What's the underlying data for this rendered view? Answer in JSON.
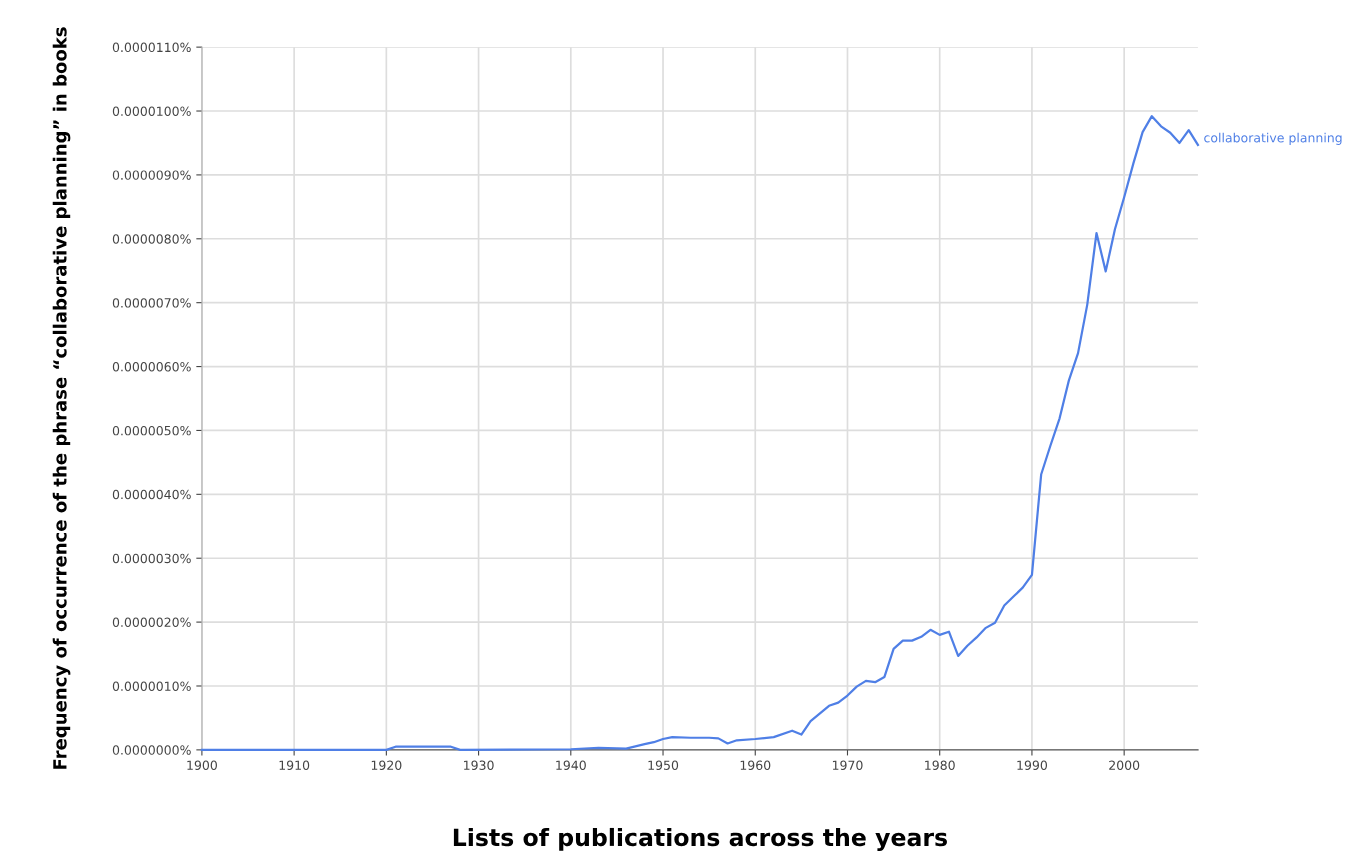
{
  "chart_data": {
    "type": "line",
    "xlabel": "Lists of publications across the years",
    "ylabel": "Frequency of occurrence of the phrase “collaborative planning” in books",
    "x": [
      1900,
      1920,
      1921,
      1927,
      1928,
      1940,
      1943,
      1946,
      1948,
      1949,
      1950,
      1951,
      1953,
      1955,
      1956,
      1957,
      1958,
      1960,
      1962,
      1964,
      1965,
      1966,
      1968,
      1969,
      1970,
      1971,
      1972,
      1973,
      1974,
      1975,
      1976,
      1977,
      1978,
      1979,
      1980,
      1981,
      1982,
      1983,
      1984,
      1985,
      1986,
      1987,
      1988,
      1989,
      1990,
      1991,
      1992,
      1993,
      1994,
      1995,
      1996,
      1997,
      1998,
      1999,
      2000,
      2001,
      2002,
      2003,
      2004,
      2005,
      2006,
      2007,
      2008
    ],
    "series": [
      {
        "name": "collaborative planning",
        "color": "#4f7fe6",
        "values": [
          0,
          0,
          5e-08,
          5e-08,
          0,
          1e-08,
          3e-08,
          2e-08,
          9e-08,
          1.2e-07,
          1.7e-07,
          2e-07,
          1.9e-07,
          1.9e-07,
          1.8e-07,
          1e-07,
          1.5e-07,
          1.7e-07,
          2e-07,
          3e-07,
          2.4e-07,
          4.5e-07,
          6.9e-07,
          7.4e-07,
          8.5e-07,
          9.9e-07,
          1.08e-06,
          1.06e-06,
          1.14e-06,
          1.58e-06,
          1.71e-06,
          1.71e-06,
          1.77e-06,
          1.88e-06,
          1.8e-06,
          1.85e-06,
          1.47e-06,
          1.63e-06,
          1.76e-06,
          1.91e-06,
          1.99e-06,
          2.26e-06,
          2.4e-06,
          2.54e-06,
          2.74e-06,
          4.31e-06,
          4.76e-06,
          5.19e-06,
          5.78e-06,
          6.21e-06,
          6.97e-06,
          8.09e-06,
          7.49e-06,
          8.15e-06,
          8.65e-06,
          9.18e-06,
          9.67e-06,
          9.92e-06,
          9.76e-06,
          9.66e-06,
          9.5e-06,
          9.7e-06,
          9.47e-06
        ]
      }
    ],
    "xlim": [
      1900,
      2008
    ],
    "xticks": [
      1900,
      1910,
      1920,
      1930,
      1940,
      1950,
      1960,
      1970,
      1980,
      1990,
      2000
    ],
    "ylim": [
      0,
      1.1e-05
    ],
    "yticks": [
      {
        "value": 0,
        "label": "0.0000000%"
      },
      {
        "value": 1e-06,
        "label": "0.0000010%"
      },
      {
        "value": 2e-06,
        "label": "0.0000020%"
      },
      {
        "value": 3e-06,
        "label": "0.0000030%"
      },
      {
        "value": 4e-06,
        "label": "0.0000040%"
      },
      {
        "value": 5e-06,
        "label": "0.0000050%"
      },
      {
        "value": 6e-06,
        "label": "0.0000060%"
      },
      {
        "value": 7e-06,
        "label": "0.0000070%"
      },
      {
        "value": 8e-06,
        "label": "0.0000080%"
      },
      {
        "value": 9e-06,
        "label": "0.0000090%"
      },
      {
        "value": 1e-05,
        "label": "0.0000100%"
      },
      {
        "value": 1.1e-05,
        "label": "0.0000110%"
      }
    ],
    "grid": true,
    "legend": false,
    "marker": "none",
    "line_style": "solid"
  }
}
